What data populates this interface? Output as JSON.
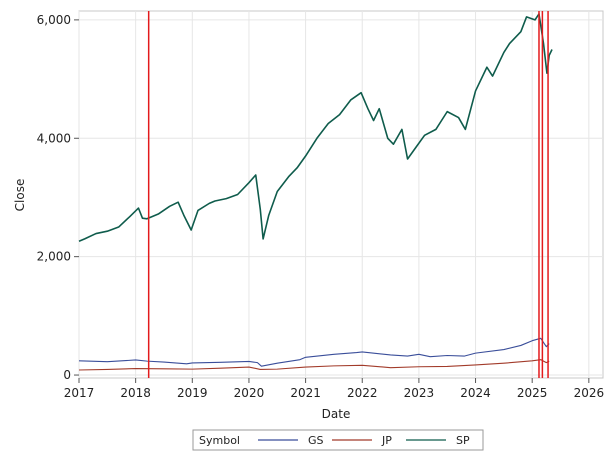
{
  "chart_data": {
    "type": "line",
    "title": "",
    "xlabel": "Date",
    "ylabel": "Close",
    "xlim": [
      2017.0,
      2026.25
    ],
    "ylim": [
      -50,
      6150
    ],
    "xticks": [
      2017,
      2018,
      2019,
      2020,
      2021,
      2022,
      2023,
      2024,
      2025,
      2026
    ],
    "xtick_labels": [
      "2017",
      "2018",
      "2019",
      "2020",
      "2021",
      "2022",
      "2023",
      "2024",
      "2025",
      "2026"
    ],
    "yticks": [
      0,
      2000,
      4000,
      6000
    ],
    "ytick_labels": [
      "0",
      "2,000",
      "4,000",
      "6,000"
    ],
    "grid": true,
    "legend": {
      "title": "Symbol",
      "placement": "bottom-center",
      "entries": [
        "GS",
        "JP",
        "SP"
      ]
    },
    "series": [
      {
        "name": "GS",
        "color": "#3a4e9a",
        "x": [
          2017.0,
          2017.5,
          2018.0,
          2018.2,
          2018.5,
          2018.9,
          2019.0,
          2019.5,
          2020.0,
          2020.15,
          2020.22,
          2020.5,
          2020.9,
          2021.0,
          2021.5,
          2021.9,
          2022.0,
          2022.5,
          2022.8,
          2023.0,
          2023.2,
          2023.5,
          2023.8,
          2024.0,
          2024.5,
          2024.8,
          2025.0,
          2025.15,
          2025.25,
          2025.3
        ],
        "y": [
          240,
          225,
          255,
          235,
          220,
          190,
          205,
          215,
          230,
          210,
          150,
          200,
          260,
          300,
          350,
          380,
          390,
          340,
          320,
          350,
          310,
          330,
          320,
          370,
          430,
          500,
          580,
          620,
          480,
          530
        ]
      },
      {
        "name": "JP",
        "color": "#a23b2a",
        "x": [
          2017.0,
          2017.5,
          2018.0,
          2018.5,
          2019.0,
          2019.5,
          2020.0,
          2020.2,
          2020.5,
          2021.0,
          2021.5,
          2022.0,
          2022.5,
          2023.0,
          2023.5,
          2024.0,
          2024.5,
          2025.0,
          2025.15,
          2025.25,
          2025.3
        ],
        "y": [
          85,
          95,
          110,
          105,
          100,
          115,
          135,
          95,
          100,
          135,
          155,
          165,
          125,
          140,
          145,
          170,
          200,
          240,
          260,
          210,
          235
        ]
      },
      {
        "name": "SP",
        "color": "#0f5c4c",
        "x": [
          2017.0,
          2017.1,
          2017.3,
          2017.5,
          2017.7,
          2017.9,
          2018.05,
          2018.12,
          2018.2,
          2018.4,
          2018.6,
          2018.75,
          2018.85,
          2018.98,
          2019.1,
          2019.3,
          2019.4,
          2019.6,
          2019.8,
          2020.0,
          2020.12,
          2020.2,
          2020.25,
          2020.35,
          2020.5,
          2020.7,
          2020.85,
          2021.0,
          2021.2,
          2021.4,
          2021.6,
          2021.8,
          2021.98,
          2022.1,
          2022.2,
          2022.3,
          2022.45,
          2022.55,
          2022.7,
          2022.8,
          2022.95,
          2023.1,
          2023.3,
          2023.5,
          2023.7,
          2023.82,
          2024.0,
          2024.2,
          2024.3,
          2024.5,
          2024.6,
          2024.8,
          2024.9,
          2025.05,
          2025.12,
          2025.2,
          2025.26,
          2025.3,
          2025.35
        ],
        "y": [
          2260,
          2300,
          2390,
          2430,
          2500,
          2680,
          2820,
          2650,
          2640,
          2720,
          2850,
          2920,
          2700,
          2450,
          2780,
          2900,
          2940,
          2980,
          3050,
          3250,
          3380,
          2800,
          2300,
          2700,
          3100,
          3350,
          3500,
          3700,
          4000,
          4250,
          4400,
          4650,
          4770,
          4500,
          4300,
          4500,
          4000,
          3900,
          4150,
          3650,
          3850,
          4050,
          4150,
          4450,
          4350,
          4150,
          4800,
          5200,
          5050,
          5450,
          5600,
          5800,
          6050,
          6000,
          6100,
          5600,
          5100,
          5400,
          5500
        ]
      }
    ],
    "reference_lines": {
      "axis": "x",
      "color": "#e31a1c",
      "values": [
        2018.23,
        2025.12,
        2025.18,
        2025.28
      ]
    }
  }
}
